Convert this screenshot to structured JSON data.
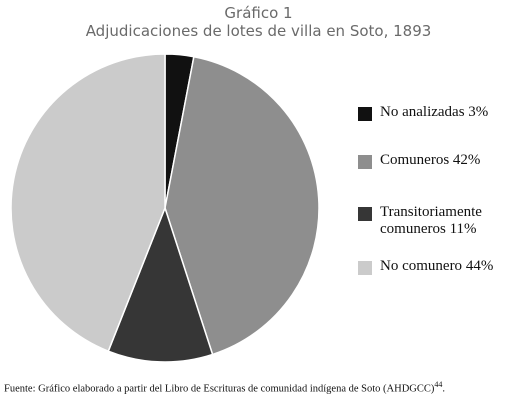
{
  "chart_data": {
    "type": "pie",
    "title": "Gráfico 1",
    "subtitle": "Adjudicaciones de lotes de villa en Soto, 1893",
    "categories": [
      "No analizadas",
      "Comuneros",
      "Transitoriamente comuneros",
      "No comunero"
    ],
    "values": [
      3,
      42,
      11,
      44
    ],
    "value_labels": [
      "3%",
      "42%",
      "11%",
      "44%"
    ],
    "colors": [
      "#111111",
      "#8e8e8e",
      "#363636",
      "#cbcbcb"
    ],
    "legend": "right",
    "source": "Fuente: Gráfico elaborado a partir del Libro de Escrituras de comunidad indígena de Soto (AHDGCC)",
    "source_note": "44",
    "source_end": "."
  }
}
